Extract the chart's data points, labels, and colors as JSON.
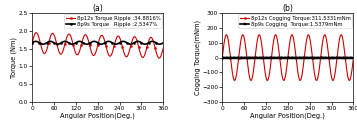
{
  "subplot_a": {
    "title": "(a)",
    "xlabel": "Angular Position(Deg.)",
    "ylabel": "Torque (Nm)",
    "xlim": [
      0,
      360
    ],
    "ylim": [
      0,
      2.5
    ],
    "yticks": [
      0,
      0.5,
      1,
      1.5,
      2,
      2.5
    ],
    "xticks": [
      0,
      60,
      120,
      180,
      240,
      300,
      360
    ],
    "black_line": {
      "label": "8p9s Torque   Ripple :2.5347%",
      "amplitude": 0.04,
      "mean": 1.67,
      "freq_cycles": 9,
      "marker": "o",
      "color": "#000000",
      "linewidth": 1.2
    },
    "red_line": {
      "label": "8p12s Torque Ripple :34.8816%",
      "amplitude": 0.29,
      "mean": 1.67,
      "freq_cycles": 8,
      "drift": -0.15,
      "marker": "o",
      "color": "#cc0000",
      "linewidth": 0.8
    }
  },
  "subplot_b": {
    "title": "(b)",
    "xlabel": "Angular Position(Deg.)",
    "ylabel": "Cogging Torque(mNm)",
    "xlim": [
      0,
      360
    ],
    "ylim": [
      -300,
      300
    ],
    "yticks": [
      -300,
      -200,
      -100,
      0,
      100,
      200,
      300
    ],
    "xticks": [
      0,
      60,
      120,
      180,
      240,
      300,
      360
    ],
    "black_line": {
      "label": "8p9s Cogging  Torque:1.5379mNm",
      "amplitude": 1.5,
      "freq_cycles": 36,
      "marker": "s",
      "color": "#000000",
      "linewidth": 1.2
    },
    "red_line": {
      "label": "8p12s Cogging Torque:311.5331mNm",
      "amplitude": 155.0,
      "freq_cycles": 8,
      "marker": "o",
      "color": "#cc0000",
      "linewidth": 0.8
    }
  },
  "background_color": "#ffffff",
  "legend_fontsize": 3.8,
  "axis_fontsize": 4.8,
  "tick_fontsize": 4.2,
  "title_fontsize": 5.5,
  "num_points": 1440
}
